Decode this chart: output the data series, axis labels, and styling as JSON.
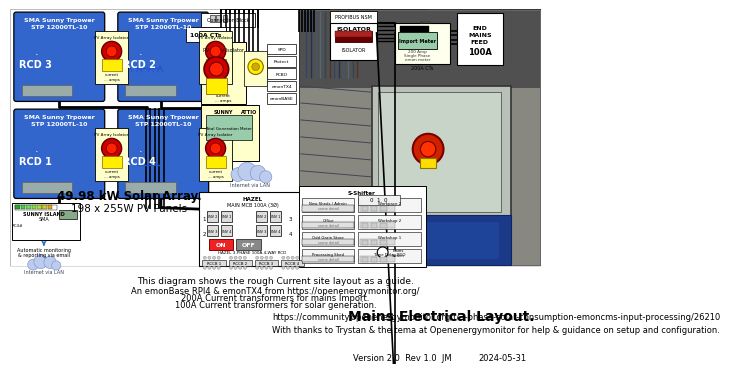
{
  "bg_color": "#ffffff",
  "blue": "#3366cc",
  "cream": "#ffffcc",
  "gray": "#aaaaaa",
  "black": "#000000",
  "red": "#cc0000",
  "yellow": "#ffee00",
  "green_display": "#99ccaa",
  "title": "Mains Electrical Layout.",
  "footer1": "This diagram shows the rough Current site layout as a guide.",
  "footer2a": "An emonBase RPI4 & emonTX4 from https://openenergymonitor.org/",
  "footer2b": "200A Current transformers for mains Import.",
  "footer2c": "100A Current transformers for solar generation.",
  "footer3": "https://community.openenergymonitor.org/t/3-phase-solar-consumption-emoncms-input-processing/26210",
  "footer4": "With thanks to Trystan & the tema at Openenergymonitor for help & guidance on setup and configuration.",
  "version": "Version 2.0  Rev 1.0  JM",
  "date": "2024-05-31"
}
